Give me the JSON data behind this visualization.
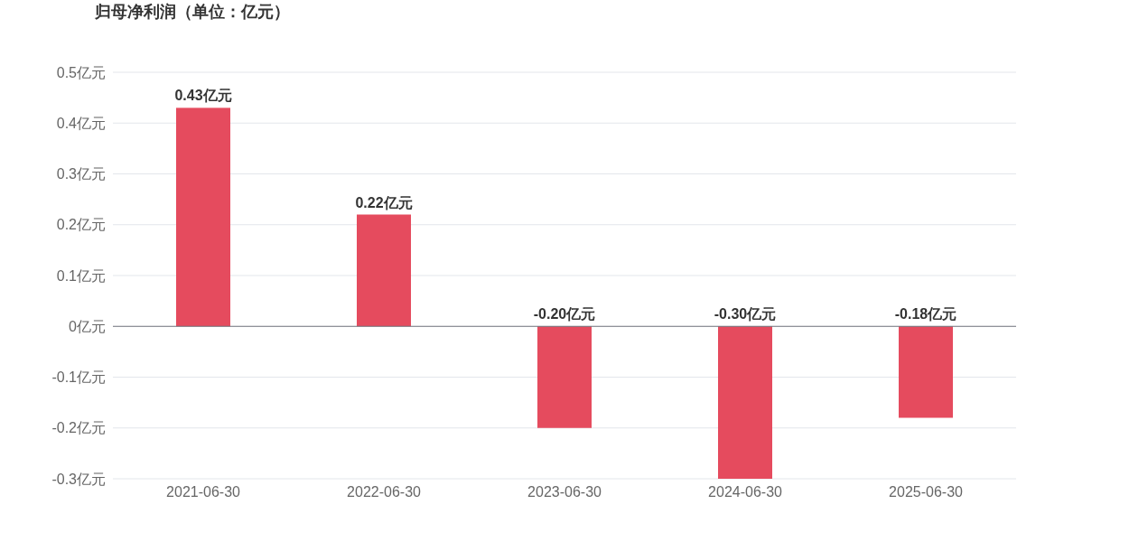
{
  "chart_data": {
    "type": "bar",
    "title": "归母净利润（单位：亿元）",
    "categories": [
      "2021-06-30",
      "2022-06-30",
      "2023-06-30",
      "2024-06-30",
      "2025-06-30"
    ],
    "values": [
      0.43,
      0.22,
      -0.2,
      -0.3,
      -0.18
    ],
    "value_labels": [
      "0.43亿元",
      "0.22亿元",
      "-0.20亿元",
      "-0.30亿元",
      "-0.18亿元"
    ],
    "color": "#e54b5e",
    "ylim": [
      -0.3,
      0.5
    ],
    "yticks": [
      {
        "value": -0.3,
        "label": "-0.3亿元"
      },
      {
        "value": -0.2,
        "label": "-0.2亿元"
      },
      {
        "value": -0.1,
        "label": "-0.1亿元"
      },
      {
        "value": 0,
        "label": "0亿元"
      },
      {
        "value": 0.1,
        "label": "0.1亿元"
      },
      {
        "value": 0.2,
        "label": "0.2亿元"
      },
      {
        "value": 0.3,
        "label": "0.3亿元"
      },
      {
        "value": 0.4,
        "label": "0.4亿元"
      },
      {
        "value": 0.5,
        "label": "0.5亿元"
      }
    ],
    "grid": "y"
  }
}
